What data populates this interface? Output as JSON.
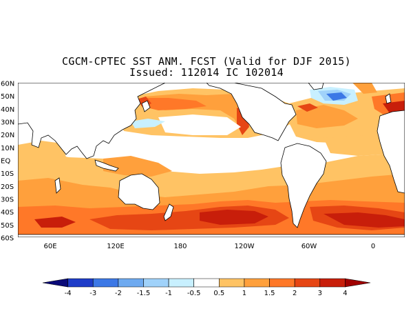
{
  "map": {
    "title_line1": "CGCM-CPTEC SST ANM. FCST  (Valid for DJF 2015)",
    "title_line2": "Issued:  112014 IC 102014",
    "lat_labels": [
      "60N",
      "50N",
      "40N",
      "30N",
      "20N",
      "10N",
      "EQ",
      "10S",
      "20S",
      "30S",
      "40S",
      "50S",
      "60S"
    ],
    "lon_labels": [
      "60E",
      "120E",
      "180",
      "120W",
      "60W",
      "0"
    ]
  },
  "colorbar": {
    "ticks": [
      "-4",
      "-3",
      "-2",
      "-1.5",
      "-1",
      "-0.5",
      "0.5",
      "1",
      "1.5",
      "2",
      "3",
      "4"
    ],
    "colors": [
      "#0a0a78",
      "#1e3cc8",
      "#3c78e6",
      "#6eaaf0",
      "#a0d2fa",
      "#c8f0ff",
      "#ffffff",
      "#ffc364",
      "#ffa03c",
      "#ff7828",
      "#e64614",
      "#c81e0a",
      "#a00000"
    ]
  },
  "legend": {
    "warm_colors": [
      "#ffc364",
      "#ffa03c",
      "#ff7828",
      "#e64614",
      "#c81e0a",
      "#a00000"
    ],
    "cool_colors": [
      "#c8f0ff",
      "#a0d2fa",
      "#6eaaf0",
      "#3c78e6"
    ]
  }
}
